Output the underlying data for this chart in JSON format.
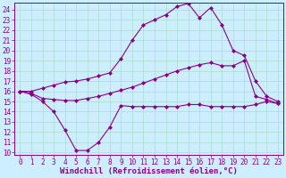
{
  "xlabel": "Windchill (Refroidissement éolien,°C)",
  "xlim_min": -0.5,
  "xlim_max": 23.5,
  "ylim_min": 9.8,
  "ylim_max": 24.7,
  "yticks": [
    10,
    11,
    12,
    13,
    14,
    15,
    16,
    17,
    18,
    19,
    20,
    21,
    22,
    23,
    24
  ],
  "xticks": [
    0,
    1,
    2,
    3,
    4,
    5,
    6,
    7,
    8,
    9,
    10,
    11,
    12,
    13,
    14,
    15,
    16,
    17,
    18,
    19,
    20,
    21,
    22,
    23
  ],
  "bg_color": "#cceeff",
  "grid_color": "#aaddcc",
  "line_color": "#880088",
  "line1_y": [
    16.0,
    15.7,
    15.0,
    14.0,
    12.2,
    10.2,
    10.2,
    11.0,
    12.5,
    14.6,
    14.5,
    14.5,
    14.5,
    14.5,
    14.5,
    14.7,
    14.7,
    14.5,
    14.5,
    14.5,
    14.5,
    14.7,
    15.0,
    14.8
  ],
  "line2_y": [
    16.0,
    15.8,
    15.3,
    15.2,
    15.1,
    15.1,
    15.3,
    15.5,
    15.8,
    16.1,
    16.4,
    16.8,
    17.2,
    17.6,
    18.0,
    18.3,
    18.6,
    18.8,
    18.5,
    18.5,
    19.0,
    15.5,
    15.2,
    14.8
  ],
  "line3_y": [
    16.0,
    16.0,
    16.3,
    16.6,
    16.9,
    17.0,
    17.2,
    17.5,
    17.8,
    19.2,
    21.0,
    22.5,
    23.0,
    23.5,
    24.3,
    24.6,
    23.2,
    24.2,
    22.5,
    20.0,
    19.5,
    17.0,
    15.5,
    15.0
  ],
  "tick_fontsize": 5.5,
  "xlabel_fontsize": 6.5
}
